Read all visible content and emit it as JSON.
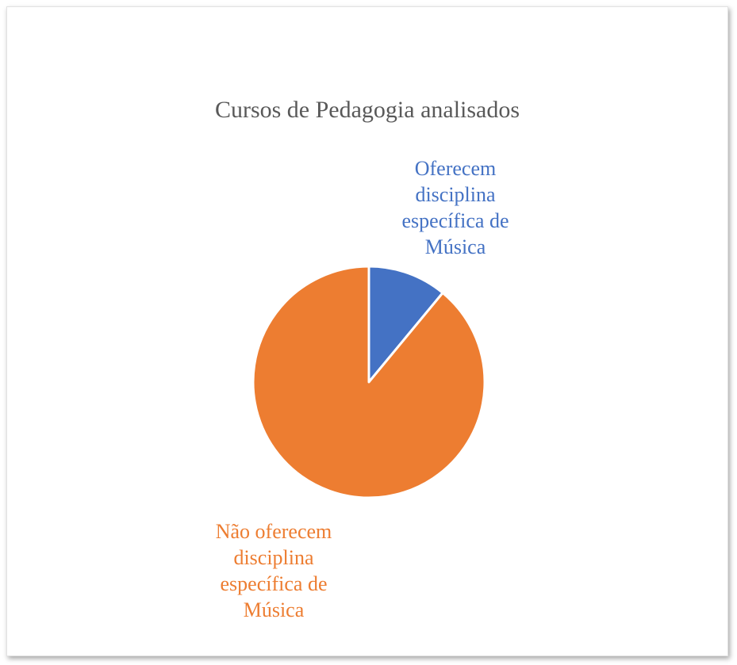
{
  "chart_data": {
    "type": "pie",
    "title": "Cursos de Pedagogia analisados",
    "categories": [
      "Oferecem disciplina específica de Música",
      "Não oferecem disciplina específica de Música"
    ],
    "values": [
      11,
      89
    ],
    "colors": [
      "#4472c4",
      "#ed7d31"
    ],
    "labels": [
      "Oferecem\ndisciplina\nespecífica de\nMúsica",
      "Não oferecem\ndisciplina\nespecífica de\nMúsica"
    ],
    "legend": "none"
  }
}
